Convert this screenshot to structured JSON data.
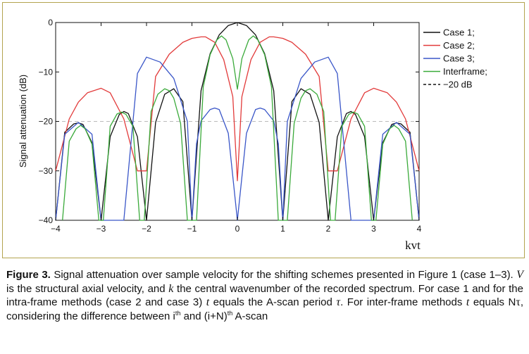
{
  "chart_data": {
    "type": "line",
    "title": "",
    "xlabel": "kvt",
    "ylabel": "Signal attenuation (dB)",
    "xlim": [
      -4,
      4
    ],
    "ylim": [
      -40,
      0
    ],
    "xticks": [
      "−4",
      "−3",
      "−2",
      "−1",
      "0",
      "1",
      "2",
      "3",
      "4"
    ],
    "yticks": [
      "0",
      "−10",
      "−20",
      "−30",
      "−40"
    ],
    "grid": false,
    "legend_position": "top-right",
    "series": [
      {
        "name": "Case 1;",
        "color": "#111111",
        "dash": "solid",
        "x": [
          -4,
          -3.8,
          -3.6,
          -3.5,
          -3.4,
          -3.2,
          -3.0,
          -2.8,
          -2.6,
          -2.5,
          -2.4,
          -2.2,
          -2.0,
          -1.8,
          -1.6,
          -1.4,
          -1.2,
          -1.0,
          -0.8,
          -0.6,
          -0.4,
          -0.2,
          0,
          0.2,
          0.4,
          0.6,
          0.8,
          1.0,
          1.2,
          1.4,
          1.6,
          1.8,
          2.0,
          2.2,
          2.4,
          2.5,
          2.6,
          2.8,
          3.0,
          3.2,
          3.4,
          3.5,
          3.6,
          3.8,
          4.0
        ],
        "y": [
          -40,
          -22.2,
          -20.5,
          -20.3,
          -20.6,
          -24.3,
          -40,
          -23.1,
          -18.6,
          -18.0,
          -18.4,
          -23.1,
          -40,
          -20.2,
          -14.5,
          -13.4,
          -16.0,
          -40,
          -13.8,
          -6.3,
          -2.5,
          -0.6,
          0,
          -0.6,
          -2.5,
          -6.3,
          -13.8,
          -40,
          -16.0,
          -13.4,
          -14.5,
          -20.2,
          -40,
          -23.1,
          -18.4,
          -18.0,
          -18.6,
          -23.1,
          -40,
          -24.3,
          -20.6,
          -20.3,
          -20.5,
          -22.2,
          -40
        ]
      },
      {
        "name": "Case 2;",
        "color": "#e23a3a",
        "dash": "solid",
        "x": [
          -4,
          -3.7,
          -3.5,
          -3.3,
          -3.0,
          -2.8,
          -2.5,
          -2.2,
          -2.0,
          -1.8,
          -1.5,
          -1.2,
          -1.0,
          -0.8,
          -0.7,
          -0.5,
          -0.3,
          -0.1,
          0,
          0.1,
          0.3,
          0.5,
          0.7,
          0.8,
          1.0,
          1.2,
          1.5,
          1.8,
          2.0,
          2.2,
          2.5,
          2.8,
          3.0,
          3.3,
          3.5,
          3.7,
          4.0
        ],
        "y": [
          -30,
          -19.5,
          -16.1,
          -14.2,
          -13.3,
          -14.2,
          -19.5,
          -30,
          -30,
          -10.9,
          -6.4,
          -4.0,
          -3.2,
          -2.9,
          -2.9,
          -4.0,
          -7.5,
          -15.0,
          -32,
          -15.0,
          -7.5,
          -4.0,
          -2.9,
          -2.9,
          -3.2,
          -4.0,
          -6.4,
          -10.9,
          -30,
          -30,
          -19.5,
          -14.2,
          -13.3,
          -14.2,
          -16.1,
          -19.5,
          -30
        ]
      },
      {
        "name": "Case 3;",
        "color": "#3a56c8",
        "dash": "solid",
        "x": [
          -4,
          -3.8,
          -3.5,
          -3.2,
          -3.0,
          -2.8,
          -2.5,
          -2.2,
          -2.0,
          -1.7,
          -1.4,
          -1.1,
          -1.0,
          -0.9,
          -0.8,
          -0.6,
          -0.5,
          -0.4,
          -0.2,
          0,
          0.2,
          0.4,
          0.5,
          0.6,
          0.8,
          0.9,
          1.0,
          1.1,
          1.4,
          1.7,
          2.0,
          2.2,
          2.5,
          2.8,
          3.0,
          3.2,
          3.5,
          3.8,
          4.0
        ],
        "y": [
          -40,
          -22.6,
          -20.2,
          -22.6,
          -40,
          -40,
          -40,
          -10.3,
          -7.0,
          -8.0,
          -11.3,
          -20.0,
          -40,
          -24.5,
          -19.9,
          -17.6,
          -17.3,
          -17.6,
          -22.4,
          -40,
          -22.4,
          -17.6,
          -17.3,
          -17.6,
          -19.9,
          -24.5,
          -40,
          -20.0,
          -11.3,
          -8.0,
          -7.0,
          -10.3,
          -40,
          -40,
          -40,
          -22.6,
          -20.2,
          -22.6,
          -40
        ]
      },
      {
        "name": "Interframe;",
        "color": "#3aaa3a",
        "dash": "solid",
        "x": [
          -3.85,
          -3.7,
          -3.55,
          -3.45,
          -3.35,
          -3.2,
          -3.05,
          -2.95,
          -2.8,
          -2.65,
          -2.55,
          -2.45,
          -2.3,
          -2.15,
          -2.05,
          -1.9,
          -1.75,
          -1.6,
          -1.5,
          -1.4,
          -1.25,
          -1.1,
          -1.0,
          -0.9,
          -0.75,
          -0.6,
          -0.45,
          -0.35,
          -0.25,
          -0.1,
          0,
          0.1,
          0.25,
          0.35,
          0.45,
          0.6,
          0.75,
          0.9,
          1.0,
          1.1,
          1.25,
          1.4,
          1.5,
          1.6,
          1.75,
          1.9,
          2.05,
          2.15,
          2.3,
          2.45,
          2.55,
          2.65,
          2.8,
          2.95,
          3.05,
          3.2,
          3.35,
          3.45,
          3.55,
          3.7,
          3.85
        ],
        "y": [
          -40,
          -24.0,
          -21.5,
          -20.8,
          -21.5,
          -24.6,
          -40,
          -40,
          -21.0,
          -18.5,
          -18.1,
          -18.6,
          -21.0,
          -40,
          -40,
          -18.0,
          -14.5,
          -13.4,
          -13.8,
          -15.3,
          -20.4,
          -40,
          -40,
          -40,
          -13.0,
          -6.5,
          -3.5,
          -2.7,
          -3.5,
          -7.3,
          -13.5,
          -7.3,
          -3.5,
          -2.7,
          -3.5,
          -6.5,
          -13.0,
          -40,
          -40,
          -40,
          -20.4,
          -15.3,
          -13.8,
          -13.4,
          -14.5,
          -18.0,
          -40,
          -40,
          -21.0,
          -18.6,
          -18.1,
          -18.5,
          -21.0,
          -40,
          -40,
          -24.6,
          -21.5,
          -20.8,
          -21.5,
          -24.0,
          -40
        ]
      },
      {
        "name": "−20 dB",
        "color": "#bbbbbb",
        "dash": "dashed",
        "x": [
          -4,
          4
        ],
        "y": [
          -20,
          -20
        ]
      }
    ]
  },
  "caption": {
    "label": "Figure 3.",
    "t1": " Signal attenuation over sample velocity for the shifting schemes presented in Figure 1 (case 1–3). ",
    "v": "V",
    "t2": " is the structural axial velocity, and ",
    "k": "k",
    "t3": " the central wavenumber of the recorded spectrum. For case 1 and for the intra-frame methods (case 2 and case 3) ",
    "t": "t",
    "t4": " equals the A-scan period ",
    "tau": "τ",
    "t5": ". For inter-frame methods ",
    "t_2": "t",
    "t6": " equals N",
    "tau_2": "τ",
    "t7": ", considering the difference between i",
    "sup1": "th",
    "t8": " and (i+N)",
    "sup2": "th",
    "t9": " A-scan"
  }
}
